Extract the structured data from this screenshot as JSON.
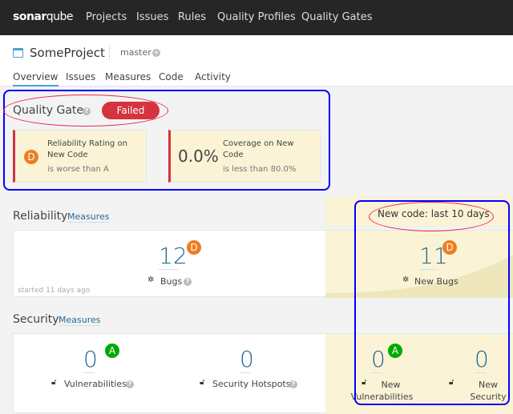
{
  "nav": {
    "logo_bold": "sonar",
    "logo_rest": "qube",
    "items": [
      "Projects",
      "Issues",
      "Rules",
      "Quality Profiles",
      "Quality Gates"
    ]
  },
  "project": {
    "name": "SomeProject",
    "branch": "master"
  },
  "tabs": [
    "Overview",
    "Issues",
    "Measures",
    "Code",
    "Activity"
  ],
  "quality_gate": {
    "title": "Quality Gate",
    "status": "Failed",
    "status_color": "#d4333f",
    "conditions": [
      {
        "rating": "D",
        "title": "Reliability Rating on New Code",
        "subtitle": "is worse than A"
      },
      {
        "value": "0.0%",
        "title": "Coverage on New Code",
        "subtitle": "is less than 80.0%"
      }
    ]
  },
  "new_code_label": "New code: last 10 days",
  "reliability": {
    "title": "Reliability",
    "measures_link": "Measures",
    "bugs": "12",
    "bugs_rating": "D",
    "bugs_label": "Bugs",
    "started": "started 11 days ago",
    "new_bugs": "11",
    "new_bugs_rating": "D",
    "new_bugs_label": "New Bugs"
  },
  "security": {
    "title": "Security",
    "measures_link": "Measures",
    "vulnerabilities": "0",
    "vuln_rating": "A",
    "vuln_label": "Vulnerabilities",
    "hotspots": "0",
    "hotspots_label": "Security Hotspots",
    "new_vulnerabilities": "0",
    "new_vuln_rating": "A",
    "new_vuln_label": "New Vulnerabilities",
    "new_hotspots": "0",
    "new_hotspots_label": "New Security Hotspots"
  },
  "colors": {
    "rating_D": "#ed7d20",
    "rating_A": "#00aa00",
    "link": "#236a97",
    "new_code_bg": "#fbf3d5"
  }
}
